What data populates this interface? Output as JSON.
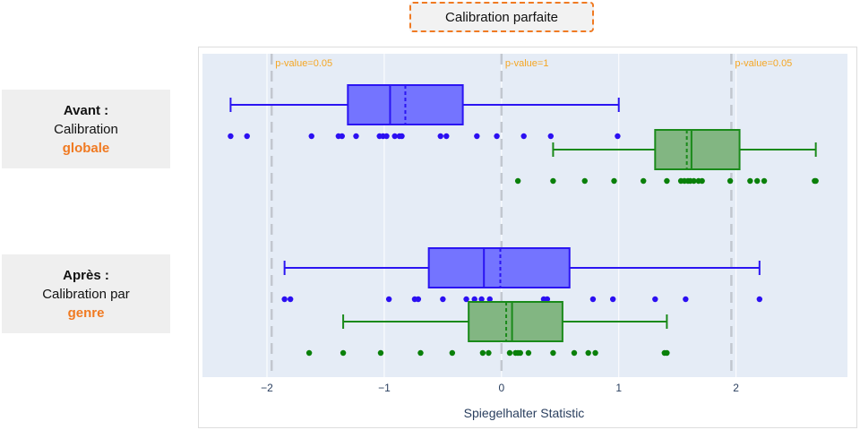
{
  "title": "Calibration parfaite",
  "groups": [
    {
      "line1": "Avant :",
      "line2": "Calibration",
      "line3": "globale"
    },
    {
      "line1": "Après :",
      "line2": "Calibration par",
      "line3": "genre"
    }
  ],
  "colors": {
    "accent": "#f07a22",
    "blue_fill": "#7474ff",
    "blue_line": "#2b15f2",
    "blue_point": "#2b0ff2",
    "green_fill": "#82b682",
    "green_line": "#1a8a1a",
    "green_point": "#0a800a",
    "plot_bg": "#e5ecf6",
    "ref_line": "#c2c7cf",
    "annotation": "#f5a623"
  },
  "chart_data": {
    "type": "box",
    "orientation": "horizontal",
    "xlabel": "Spiegelhalter Statistic",
    "xlim": [
      -2.55,
      2.95
    ],
    "x_ticks": [
      {
        "value": -2,
        "label": "−2"
      },
      {
        "value": -1,
        "label": "−1"
      },
      {
        "value": 0,
        "label": "0"
      },
      {
        "value": 1,
        "label": "1"
      },
      {
        "value": 2,
        "label": "2"
      }
    ],
    "grid": true,
    "reference_lines": [
      {
        "x": -1.96,
        "label": "p-value=0.05"
      },
      {
        "x": 0,
        "label": "p-value=1"
      },
      {
        "x": 1.96,
        "label": "p-value=0.05"
      }
    ],
    "boxes": [
      {
        "row": 0,
        "color": "blue",
        "whisker_low": -2.31,
        "q1": -1.31,
        "median": -0.95,
        "mean": -0.82,
        "q3": -0.33,
        "whisker_high": 1.0,
        "points": [
          -2.31,
          -2.17,
          -1.62,
          -1.39,
          -1.36,
          -1.24,
          -1.04,
          -1.01,
          -0.98,
          -0.91,
          -0.87,
          -0.85,
          -0.52,
          -0.47,
          -0.21,
          -0.04,
          0.19,
          0.42,
          0.99
        ]
      },
      {
        "row": 1,
        "color": "green",
        "whisker_low": 0.44,
        "q1": 1.31,
        "median": 1.62,
        "mean": 1.58,
        "q3": 2.03,
        "whisker_high": 2.68,
        "points": [
          0.14,
          0.44,
          0.71,
          0.96,
          1.21,
          1.41,
          1.53,
          1.56,
          1.59,
          1.61,
          1.64,
          1.68,
          1.71,
          1.95,
          2.12,
          2.18,
          2.24,
          2.67,
          2.68
        ]
      },
      {
        "row": 2,
        "color": "blue",
        "whisker_low": -1.85,
        "q1": -0.62,
        "median": -0.15,
        "mean": -0.01,
        "q3": 0.58,
        "whisker_high": 2.2,
        "points": [
          -1.85,
          -1.8,
          -0.96,
          -0.74,
          -0.71,
          -0.5,
          -0.3,
          -0.23,
          -0.17,
          -0.1,
          0.36,
          0.39,
          0.78,
          0.95,
          1.31,
          1.57,
          2.2
        ]
      },
      {
        "row": 3,
        "color": "green",
        "whisker_low": -1.35,
        "q1": -0.28,
        "median": 0.09,
        "mean": 0.04,
        "q3": 0.52,
        "whisker_high": 1.41,
        "points": [
          -1.64,
          -1.35,
          -1.03,
          -0.69,
          -0.42,
          -0.16,
          -0.11,
          0.07,
          0.12,
          0.14,
          0.16,
          0.23,
          0.44,
          0.62,
          0.74,
          0.8,
          1.39,
          1.41
        ]
      }
    ]
  }
}
